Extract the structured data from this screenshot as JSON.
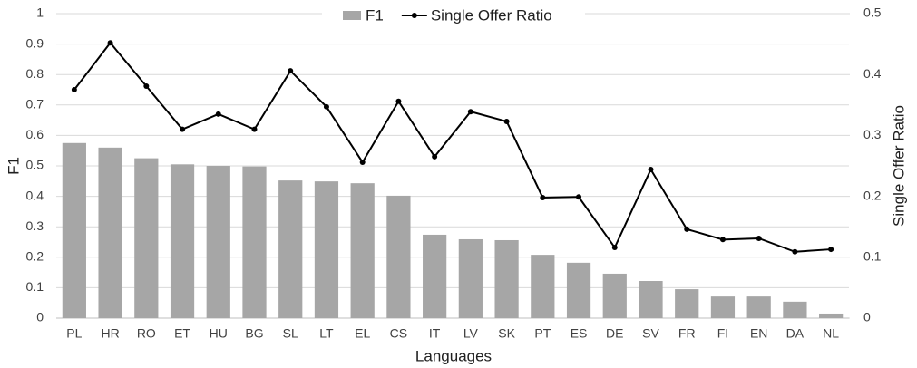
{
  "chart_data": {
    "type": "bar_line",
    "xlabel": "Languages",
    "ylabel": "F1",
    "y2label": "Single Offer Ratio",
    "categories": [
      "PL",
      "HR",
      "RO",
      "ET",
      "HU",
      "BG",
      "SL",
      "LT",
      "EL",
      "CS",
      "IT",
      "LV",
      "SK",
      "PT",
      "ES",
      "DE",
      "SV",
      "FR",
      "FI",
      "EN",
      "DA",
      "NL"
    ],
    "series": [
      {
        "name": "F1",
        "type": "bar",
        "color": "#a6a6a6",
        "values": [
          0.575,
          0.56,
          0.525,
          0.505,
          0.5,
          0.498,
          0.452,
          0.449,
          0.443,
          0.402,
          0.274,
          0.259,
          0.256,
          0.208,
          0.182,
          0.146,
          0.122,
          0.095,
          0.071,
          0.071,
          0.054,
          0.015
        ]
      },
      {
        "name": "Single Offer Ratio",
        "type": "line",
        "axis": "y2",
        "color": "#000000",
        "values": [
          0.375,
          0.452,
          0.381,
          0.31,
          0.335,
          0.31,
          0.406,
          0.347,
          0.256,
          0.356,
          0.265,
          0.339,
          0.323,
          0.198,
          0.199,
          0.116,
          0.244,
          0.146,
          0.129,
          0.131,
          0.109,
          0.113
        ]
      }
    ],
    "ylim": [
      0,
      1
    ],
    "yticks": [
      0,
      0.1,
      0.2,
      0.3,
      0.4,
      0.5,
      0.6,
      0.7,
      0.8,
      0.9,
      1
    ],
    "y2lim": [
      0,
      0.5
    ],
    "y2ticks": [
      0,
      0.1,
      0.2,
      0.3,
      0.4,
      0.5
    ],
    "grid": true,
    "legend": "top"
  }
}
